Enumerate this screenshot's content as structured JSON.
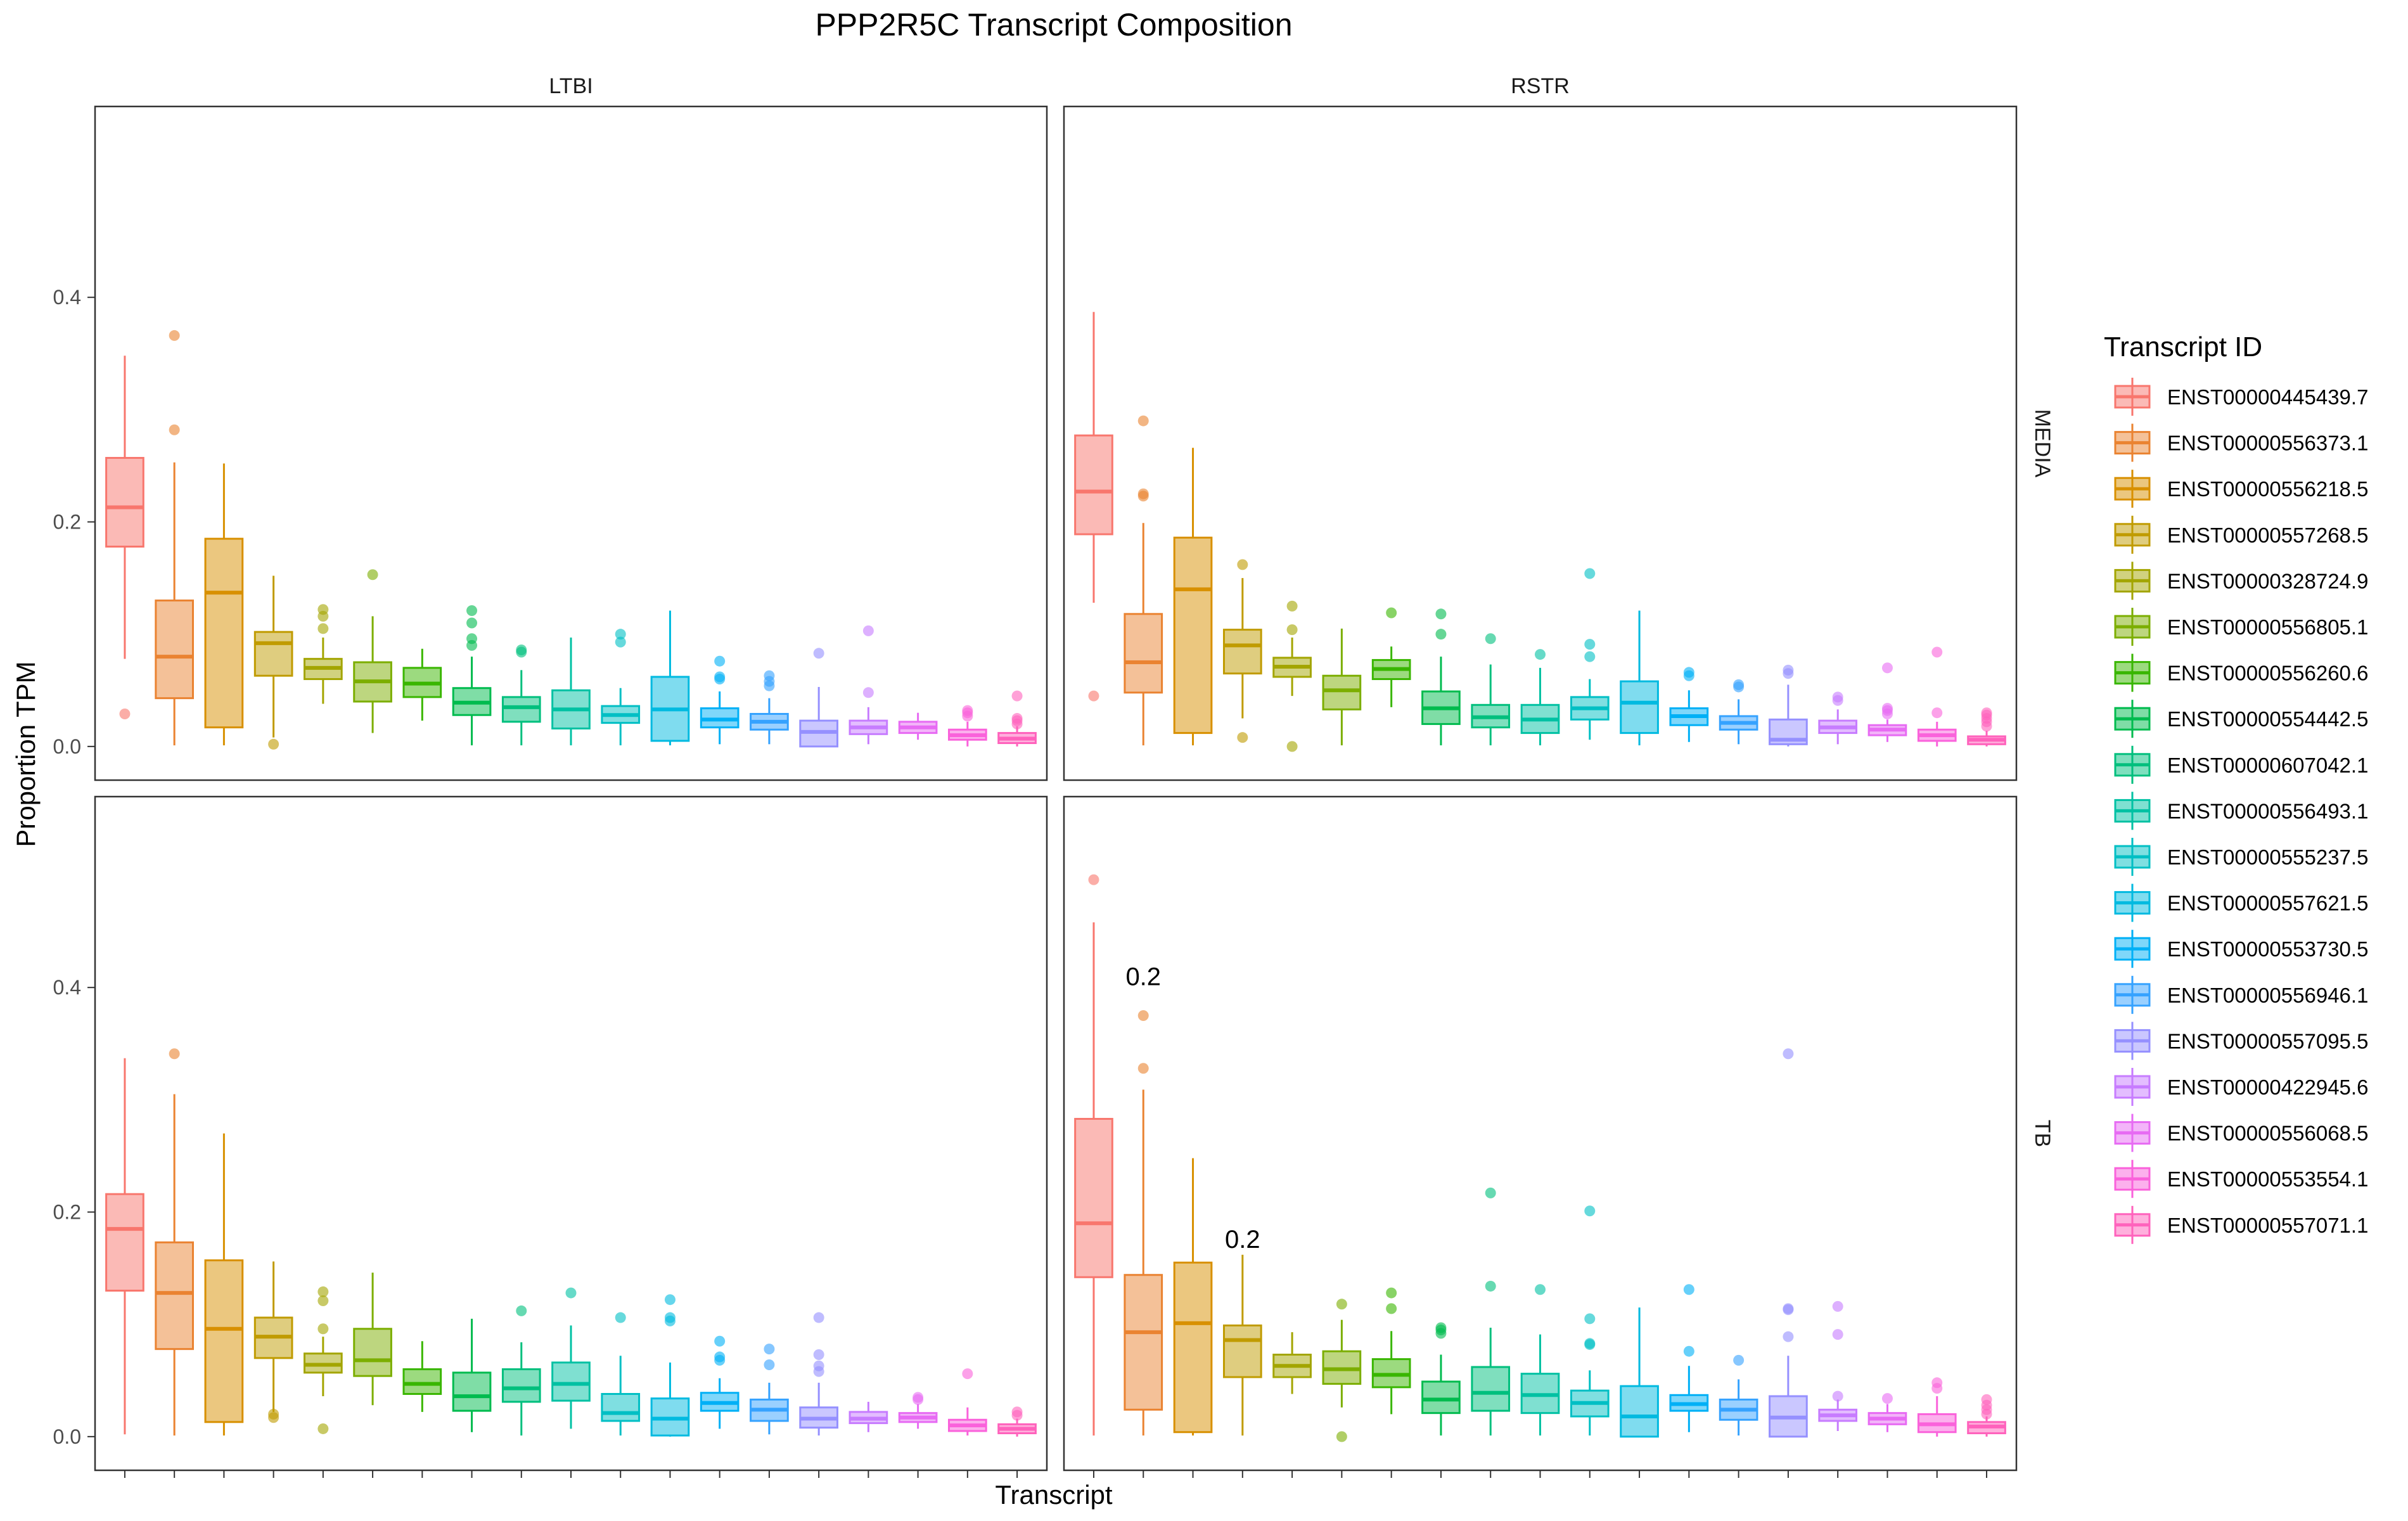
{
  "chart_data": {
    "type": "boxplot",
    "title": "PPP2R5C Transcript Composition",
    "xlabel": "Transcript",
    "ylabel": "Proportion TPM",
    "ylim": [
      -0.03,
      0.57
    ],
    "yticks": [
      0.0,
      0.2,
      0.4
    ],
    "ytick_labels": [
      "0.0",
      "0.2",
      "0.4"
    ],
    "grid": false,
    "legend": {
      "title": "Transcript ID",
      "placement": "right",
      "entries": [
        "ENST00000445439.7",
        "ENST00000556373.1",
        "ENST00000556218.5",
        "ENST00000557268.5",
        "ENST00000328724.9",
        "ENST00000556805.1",
        "ENST00000556260.6",
        "ENST00000554442.5",
        "ENST00000607042.1",
        "ENST00000556493.1",
        "ENST00000555237.5",
        "ENST00000557621.5",
        "ENST00000553730.5",
        "ENST00000556946.1",
        "ENST00000557095.5",
        "ENST00000422945.6",
        "ENST00000556068.5",
        "ENST00000553554.1",
        "ENST00000557071.1"
      ]
    },
    "colors": [
      "#F8766D",
      "#EA8331",
      "#D89000",
      "#C09B00",
      "#A3A500",
      "#7CAE00",
      "#39B600",
      "#00BB4E",
      "#00BF7D",
      "#00C1A3",
      "#00BFC4",
      "#00BAE0",
      "#00B0F6",
      "#35A2FF",
      "#9590FF",
      "#C77CFF",
      "#E76BF3",
      "#FA62DB",
      "#FF62BC"
    ],
    "columns": [
      "LTBI",
      "RSTR"
    ],
    "rows": [
      "MEDIA",
      "TB"
    ],
    "panels": [
      {
        "column": "LTBI",
        "row": "MEDIA",
        "annotations": [],
        "boxes": [
          {
            "q1": 0.178,
            "median": 0.213,
            "q3": 0.257,
            "wlo": 0.078,
            "whi": 0.348,
            "outliers": [
              0.029
            ]
          },
          {
            "q1": 0.043,
            "median": 0.08,
            "q3": 0.13,
            "wlo": 0.001,
            "whi": 0.253,
            "outliers": [
              0.282,
              0.366
            ]
          },
          {
            "q1": 0.017,
            "median": 0.137,
            "q3": 0.185,
            "wlo": 0.001,
            "whi": 0.252,
            "outliers": []
          },
          {
            "q1": 0.063,
            "median": 0.092,
            "q3": 0.102,
            "wlo": 0.008,
            "whi": 0.152,
            "outliers": [
              0.002
            ]
          },
          {
            "q1": 0.06,
            "median": 0.07,
            "q3": 0.078,
            "wlo": 0.038,
            "whi": 0.097,
            "outliers": [
              0.105,
              0.116,
              0.122
            ]
          },
          {
            "q1": 0.04,
            "median": 0.058,
            "q3": 0.075,
            "wlo": 0.012,
            "whi": 0.116,
            "outliers": [
              0.153
            ]
          },
          {
            "q1": 0.044,
            "median": 0.056,
            "q3": 0.07,
            "wlo": 0.023,
            "whi": 0.087,
            "outliers": []
          },
          {
            "q1": 0.028,
            "median": 0.039,
            "q3": 0.052,
            "wlo": 0.001,
            "whi": 0.08,
            "outliers": [
              0.09,
              0.096,
              0.11,
              0.121
            ]
          },
          {
            "q1": 0.022,
            "median": 0.035,
            "q3": 0.044,
            "wlo": 0.001,
            "whi": 0.068,
            "outliers": [
              0.084,
              0.086
            ]
          },
          {
            "q1": 0.016,
            "median": 0.033,
            "q3": 0.05,
            "wlo": 0.001,
            "whi": 0.097,
            "outliers": []
          },
          {
            "q1": 0.021,
            "median": 0.028,
            "q3": 0.036,
            "wlo": 0.001,
            "whi": 0.052,
            "outliers": [
              0.093,
              0.1
            ]
          },
          {
            "q1": 0.005,
            "median": 0.033,
            "q3": 0.062,
            "wlo": 0.001,
            "whi": 0.121,
            "outliers": []
          },
          {
            "q1": 0.017,
            "median": 0.024,
            "q3": 0.034,
            "wlo": 0.002,
            "whi": 0.049,
            "outliers": [
              0.06,
              0.062,
              0.076
            ]
          },
          {
            "q1": 0.015,
            "median": 0.022,
            "q3": 0.029,
            "wlo": 0.002,
            "whi": 0.043,
            "outliers": [
              0.054,
              0.058,
              0.063
            ]
          },
          {
            "q1": 0.0,
            "median": 0.013,
            "q3": 0.023,
            "wlo": 0.0,
            "whi": 0.053,
            "outliers": [
              0.083
            ]
          },
          {
            "q1": 0.011,
            "median": 0.017,
            "q3": 0.023,
            "wlo": 0.002,
            "whi": 0.035,
            "outliers": [
              0.048,
              0.103
            ]
          },
          {
            "q1": 0.012,
            "median": 0.017,
            "q3": 0.022,
            "wlo": 0.006,
            "whi": 0.03,
            "outliers": []
          },
          {
            "q1": 0.006,
            "median": 0.01,
            "q3": 0.015,
            "wlo": 0.0,
            "whi": 0.022,
            "outliers": [
              0.027,
              0.03,
              0.032
            ]
          },
          {
            "q1": 0.003,
            "median": 0.007,
            "q3": 0.012,
            "wlo": 0.0,
            "whi": 0.018,
            "outliers": [
              0.02,
              0.023,
              0.025,
              0.045
            ]
          }
        ]
      },
      {
        "column": "RSTR",
        "row": "MEDIA",
        "annotations": [],
        "boxes": [
          {
            "q1": 0.189,
            "median": 0.227,
            "q3": 0.277,
            "wlo": 0.128,
            "whi": 0.387,
            "outliers": [
              0.045
            ]
          },
          {
            "q1": 0.048,
            "median": 0.075,
            "q3": 0.118,
            "wlo": 0.001,
            "whi": 0.199,
            "outliers": [
              0.223,
              0.225,
              0.29
            ]
          },
          {
            "q1": 0.012,
            "median": 0.14,
            "q3": 0.186,
            "wlo": 0.001,
            "whi": 0.266,
            "outliers": []
          },
          {
            "q1": 0.065,
            "median": 0.09,
            "q3": 0.104,
            "wlo": 0.025,
            "whi": 0.15,
            "outliers": [
              0.008,
              0.162
            ]
          },
          {
            "q1": 0.062,
            "median": 0.071,
            "q3": 0.079,
            "wlo": 0.045,
            "whi": 0.097,
            "outliers": [
              0.0,
              0.104,
              0.125
            ]
          },
          {
            "q1": 0.033,
            "median": 0.05,
            "q3": 0.063,
            "wlo": 0.001,
            "whi": 0.105,
            "outliers": []
          },
          {
            "q1": 0.06,
            "median": 0.069,
            "q3": 0.077,
            "wlo": 0.035,
            "whi": 0.089,
            "outliers": [
              0.119
            ]
          },
          {
            "q1": 0.02,
            "median": 0.034,
            "q3": 0.049,
            "wlo": 0.001,
            "whi": 0.08,
            "outliers": [
              0.1,
              0.118
            ]
          },
          {
            "q1": 0.017,
            "median": 0.026,
            "q3": 0.037,
            "wlo": 0.001,
            "whi": 0.073,
            "outliers": [
              0.096
            ]
          },
          {
            "q1": 0.012,
            "median": 0.024,
            "q3": 0.037,
            "wlo": 0.001,
            "whi": 0.07,
            "outliers": [
              0.082
            ]
          },
          {
            "q1": 0.024,
            "median": 0.034,
            "q3": 0.044,
            "wlo": 0.006,
            "whi": 0.06,
            "outliers": [
              0.08,
              0.091,
              0.154
            ]
          },
          {
            "q1": 0.012,
            "median": 0.039,
            "q3": 0.058,
            "wlo": 0.001,
            "whi": 0.121,
            "outliers": []
          },
          {
            "q1": 0.019,
            "median": 0.027,
            "q3": 0.034,
            "wlo": 0.004,
            "whi": 0.05,
            "outliers": [
              0.063,
              0.066
            ]
          },
          {
            "q1": 0.015,
            "median": 0.021,
            "q3": 0.027,
            "wlo": 0.002,
            "whi": 0.042,
            "outliers": [
              0.053,
              0.055
            ]
          },
          {
            "q1": 0.002,
            "median": 0.006,
            "q3": 0.024,
            "wlo": 0.0,
            "whi": 0.055,
            "outliers": [
              0.065,
              0.068
            ]
          },
          {
            "q1": 0.012,
            "median": 0.017,
            "q3": 0.023,
            "wlo": 0.002,
            "whi": 0.033,
            "outliers": [
              0.041,
              0.044
            ]
          },
          {
            "q1": 0.01,
            "median": 0.015,
            "q3": 0.019,
            "wlo": 0.004,
            "whi": 0.024,
            "outliers": [
              0.029,
              0.032,
              0.034,
              0.07
            ]
          },
          {
            "q1": 0.005,
            "median": 0.01,
            "q3": 0.015,
            "wlo": 0.0,
            "whi": 0.022,
            "outliers": [
              0.03,
              0.084
            ]
          },
          {
            "q1": 0.002,
            "median": 0.006,
            "q3": 0.009,
            "wlo": 0.0,
            "whi": 0.014,
            "outliers": [
              0.018,
              0.022,
              0.025,
              0.028,
              0.03
            ]
          }
        ]
      },
      {
        "column": "LTBI",
        "row": "TB",
        "annotations": [],
        "boxes": [
          {
            "q1": 0.13,
            "median": 0.185,
            "q3": 0.216,
            "wlo": 0.002,
            "whi": 0.337,
            "outliers": []
          },
          {
            "q1": 0.078,
            "median": 0.128,
            "q3": 0.173,
            "wlo": 0.001,
            "whi": 0.305,
            "outliers": [
              0.341
            ]
          },
          {
            "q1": 0.013,
            "median": 0.096,
            "q3": 0.157,
            "wlo": 0.001,
            "whi": 0.27,
            "outliers": []
          },
          {
            "q1": 0.07,
            "median": 0.089,
            "q3": 0.106,
            "wlo": 0.022,
            "whi": 0.156,
            "outliers": [
              0.017,
              0.02
            ]
          },
          {
            "q1": 0.057,
            "median": 0.064,
            "q3": 0.074,
            "wlo": 0.036,
            "whi": 0.089,
            "outliers": [
              0.007,
              0.096,
              0.121,
              0.129
            ]
          },
          {
            "q1": 0.054,
            "median": 0.068,
            "q3": 0.096,
            "wlo": 0.028,
            "whi": 0.146,
            "outliers": []
          },
          {
            "q1": 0.038,
            "median": 0.047,
            "q3": 0.06,
            "wlo": 0.022,
            "whi": 0.085,
            "outliers": []
          },
          {
            "q1": 0.023,
            "median": 0.036,
            "q3": 0.057,
            "wlo": 0.004,
            "whi": 0.105,
            "outliers": []
          },
          {
            "q1": 0.031,
            "median": 0.043,
            "q3": 0.06,
            "wlo": 0.001,
            "whi": 0.084,
            "outliers": [
              0.112
            ]
          },
          {
            "q1": 0.032,
            "median": 0.047,
            "q3": 0.066,
            "wlo": 0.007,
            "whi": 0.099,
            "outliers": [
              0.128
            ]
          },
          {
            "q1": 0.014,
            "median": 0.021,
            "q3": 0.038,
            "wlo": 0.001,
            "whi": 0.072,
            "outliers": [
              0.106
            ]
          },
          {
            "q1": 0.001,
            "median": 0.016,
            "q3": 0.034,
            "wlo": 0.0,
            "whi": 0.066,
            "outliers": [
              0.103,
              0.106,
              0.122
            ]
          },
          {
            "q1": 0.023,
            "median": 0.03,
            "q3": 0.039,
            "wlo": 0.007,
            "whi": 0.052,
            "outliers": [
              0.068,
              0.071,
              0.085
            ]
          },
          {
            "q1": 0.014,
            "median": 0.024,
            "q3": 0.033,
            "wlo": 0.002,
            "whi": 0.048,
            "outliers": [
              0.064,
              0.078
            ]
          },
          {
            "q1": 0.008,
            "median": 0.016,
            "q3": 0.026,
            "wlo": 0.001,
            "whi": 0.048,
            "outliers": [
              0.058,
              0.063,
              0.073,
              0.106
            ]
          },
          {
            "q1": 0.012,
            "median": 0.016,
            "q3": 0.022,
            "wlo": 0.004,
            "whi": 0.031,
            "outliers": []
          },
          {
            "q1": 0.013,
            "median": 0.017,
            "q3": 0.021,
            "wlo": 0.007,
            "whi": 0.029,
            "outliers": [
              0.033,
              0.035
            ]
          },
          {
            "q1": 0.005,
            "median": 0.01,
            "q3": 0.015,
            "wlo": 0.001,
            "whi": 0.026,
            "outliers": [
              0.056
            ]
          },
          {
            "q1": 0.003,
            "median": 0.007,
            "q3": 0.011,
            "wlo": 0.0,
            "whi": 0.016,
            "outliers": [
              0.019,
              0.022
            ]
          }
        ]
      },
      {
        "column": "RSTR",
        "row": "TB",
        "annotations": [
          {
            "box": 1,
            "y": 0.41,
            "text": "0.2"
          },
          {
            "box": 3,
            "y": 0.176,
            "text": "0.2"
          }
        ],
        "boxes": [
          {
            "q1": 0.142,
            "median": 0.19,
            "q3": 0.283,
            "wlo": 0.001,
            "whi": 0.458,
            "outliers": [
              0.496
            ]
          },
          {
            "q1": 0.024,
            "median": 0.093,
            "q3": 0.144,
            "wlo": 0.001,
            "whi": 0.309,
            "outliers": [
              0.328,
              0.375
            ]
          },
          {
            "q1": 0.004,
            "median": 0.101,
            "q3": 0.155,
            "wlo": 0.001,
            "whi": 0.248,
            "outliers": []
          },
          {
            "q1": 0.053,
            "median": 0.086,
            "q3": 0.099,
            "wlo": 0.001,
            "whi": 0.162,
            "outliers": []
          },
          {
            "q1": 0.053,
            "median": 0.063,
            "q3": 0.073,
            "wlo": 0.038,
            "whi": 0.093,
            "outliers": []
          },
          {
            "q1": 0.047,
            "median": 0.06,
            "q3": 0.076,
            "wlo": 0.026,
            "whi": 0.104,
            "outliers": [
              0.0,
              0.118
            ]
          },
          {
            "q1": 0.044,
            "median": 0.055,
            "q3": 0.069,
            "wlo": 0.02,
            "whi": 0.094,
            "outliers": [
              0.114,
              0.128
            ]
          },
          {
            "q1": 0.021,
            "median": 0.033,
            "q3": 0.049,
            "wlo": 0.001,
            "whi": 0.073,
            "outliers": [
              0.092,
              0.095,
              0.097
            ]
          },
          {
            "q1": 0.023,
            "median": 0.039,
            "q3": 0.062,
            "wlo": 0.001,
            "whi": 0.097,
            "outliers": [
              0.134,
              0.217
            ]
          },
          {
            "q1": 0.021,
            "median": 0.037,
            "q3": 0.056,
            "wlo": 0.001,
            "whi": 0.091,
            "outliers": [
              0.131
            ]
          },
          {
            "q1": 0.018,
            "median": 0.03,
            "q3": 0.041,
            "wlo": 0.001,
            "whi": 0.059,
            "outliers": [
              0.082,
              0.083,
              0.105,
              0.201
            ]
          },
          {
            "q1": 0.0,
            "median": 0.018,
            "q3": 0.045,
            "wlo": 0.0,
            "whi": 0.115,
            "outliers": []
          },
          {
            "q1": 0.023,
            "median": 0.029,
            "q3": 0.037,
            "wlo": 0.004,
            "whi": 0.063,
            "outliers": [
              0.076,
              0.131
            ]
          },
          {
            "q1": 0.015,
            "median": 0.024,
            "q3": 0.033,
            "wlo": 0.001,
            "whi": 0.051,
            "outliers": [
              0.068
            ]
          },
          {
            "q1": 0.0,
            "median": 0.017,
            "q3": 0.036,
            "wlo": 0.0,
            "whi": 0.072,
            "outliers": [
              0.089,
              0.113,
              0.114,
              0.341
            ]
          },
          {
            "q1": 0.014,
            "median": 0.019,
            "q3": 0.024,
            "wlo": 0.005,
            "whi": 0.033,
            "outliers": [
              0.036,
              0.091,
              0.116
            ]
          },
          {
            "q1": 0.011,
            "median": 0.016,
            "q3": 0.021,
            "wlo": 0.004,
            "whi": 0.029,
            "outliers": [
              0.034
            ]
          },
          {
            "q1": 0.004,
            "median": 0.011,
            "q3": 0.02,
            "wlo": 0.0,
            "whi": 0.036,
            "outliers": [
              0.043,
              0.048
            ]
          },
          {
            "q1": 0.003,
            "median": 0.009,
            "q3": 0.013,
            "wlo": 0.0,
            "whi": 0.018,
            "outliers": [
              0.02,
              0.024,
              0.028,
              0.033
            ]
          }
        ]
      }
    ]
  }
}
